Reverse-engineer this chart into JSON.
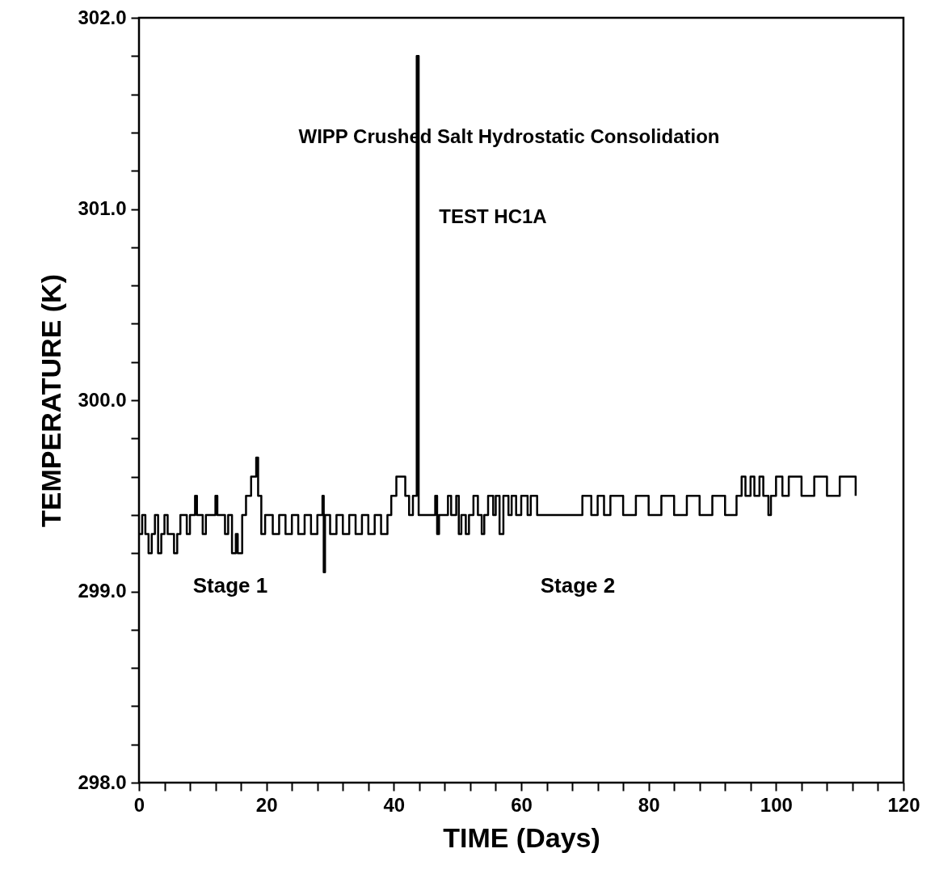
{
  "chart_data": {
    "type": "step",
    "title": "WIPP Crushed Salt Hydrostatic Consolidation",
    "subtitle": "TEST HC1A",
    "xlabel": "TIME (Days)",
    "ylabel": "TEMPERATURE (K)",
    "xlim": [
      0,
      120
    ],
    "ylim": [
      298.0,
      302.0
    ],
    "xticks": [
      0,
      {
        "value": 4,
        "label": null
      },
      {
        "value": 8,
        "label": null
      },
      {
        "value": 12,
        "label": null
      },
      {
        "value": 16,
        "label": null
      },
      20,
      {
        "value": 24,
        "label": null
      },
      {
        "value": 28,
        "label": null
      },
      {
        "value": 32,
        "label": null
      },
      {
        "value": 36,
        "label": null
      },
      40,
      {
        "value": 44,
        "label": null
      },
      {
        "value": 48,
        "label": null
      },
      {
        "value": 52,
        "label": null
      },
      {
        "value": 56,
        "label": null
      },
      60,
      {
        "value": 64,
        "label": null
      },
      {
        "value": 68,
        "label": null
      },
      {
        "value": 72,
        "label": null
      },
      {
        "value": 76,
        "label": null
      },
      80,
      {
        "value": 84,
        "label": null
      },
      {
        "value": 88,
        "label": null
      },
      {
        "value": 92,
        "label": null
      },
      {
        "value": 96,
        "label": null
      },
      100,
      {
        "value": 104,
        "label": null
      },
      {
        "value": 108,
        "label": null
      },
      {
        "value": 112,
        "label": null
      },
      {
        "value": 116,
        "label": null
      },
      120
    ],
    "yticks": [
      {
        "value": 298,
        "label": "298.0"
      },
      {
        "value": 298.2,
        "label": null
      },
      {
        "value": 298.4,
        "label": null
      },
      {
        "value": 298.6,
        "label": null
      },
      {
        "value": 298.8,
        "label": null
      },
      {
        "value": 299,
        "label": "299.0"
      },
      {
        "value": 299.2,
        "label": null
      },
      {
        "value": 299.4,
        "label": null
      },
      {
        "value": 299.6,
        "label": null
      },
      {
        "value": 299.8,
        "label": null
      },
      {
        "value": 300,
        "label": "300.0"
      },
      {
        "value": 300.2,
        "label": null
      },
      {
        "value": 300.4,
        "label": null
      },
      {
        "value": 300.6,
        "label": null
      },
      {
        "value": 300.8,
        "label": null
      },
      {
        "value": 301,
        "label": "301.0"
      },
      {
        "value": 301.2,
        "label": null
      },
      {
        "value": 301.4,
        "label": null
      },
      {
        "value": 301.6,
        "label": null
      },
      {
        "value": 301.8,
        "label": null
      },
      {
        "value": 302,
        "label": "302.0"
      }
    ],
    "grid": false,
    "marker": "none",
    "line_style": "solid",
    "annotations": [
      "Stage 1",
      "Stage 2"
    ],
    "series": [
      {
        "color": "#000000",
        "x": [
          0,
          0.5,
          1.0,
          1.5,
          2.0,
          2.5,
          3.0,
          3.5,
          4.0,
          4.5,
          5.5,
          6.0,
          6.5,
          7.5,
          8.0,
          8.8,
          9.1,
          10.0,
          10.5,
          12.0,
          12.3,
          13.5,
          14.0,
          14.6,
          15.2,
          15.5,
          16.2,
          16.8,
          17.6,
          18.4,
          18.7,
          19.2,
          19.8,
          21.0,
          22.0,
          23.0,
          24.0,
          25.0,
          26.0,
          27.0,
          28.0,
          28.8,
          29.0,
          29.2,
          30,
          31,
          32,
          33,
          34,
          35,
          36,
          37,
          38,
          39,
          39.6,
          40.4,
          41.8,
          42.4,
          43.0,
          43.6,
          43.9,
          46.5,
          46.8,
          47.1,
          48.5,
          49,
          49.8,
          50.2,
          50.6,
          51.3,
          51.8,
          52.5,
          53.2,
          53.8,
          54.2,
          54.8,
          55.6,
          56.0,
          56.6,
          57.2,
          58,
          58.5,
          59.2,
          60,
          61,
          61.5,
          62.5,
          69.6,
          71,
          72,
          73,
          74,
          76,
          78,
          80,
          82,
          84,
          86,
          88,
          90,
          92,
          93.8,
          94.6,
          95.2,
          96,
          96.6,
          97.4,
          98.0,
          98.8,
          99.2,
          100,
          101,
          102,
          104,
          106,
          108,
          110,
          112.5
        ],
        "values": [
          299.3,
          299.4,
          299.3,
          299.2,
          299.3,
          299.4,
          299.2,
          299.3,
          299.4,
          299.3,
          299.2,
          299.3,
          299.4,
          299.3,
          299.4,
          299.5,
          299.4,
          299.3,
          299.4,
          299.5,
          299.4,
          299.3,
          299.4,
          299.2,
          299.3,
          299.2,
          299.4,
          299.5,
          299.6,
          299.7,
          299.5,
          299.3,
          299.4,
          299.3,
          299.4,
          299.3,
          299.4,
          299.3,
          299.4,
          299.3,
          299.4,
          299.5,
          299.1,
          299.4,
          299.3,
          299.4,
          299.3,
          299.4,
          299.3,
          299.4,
          299.3,
          299.4,
          299.3,
          299.4,
          299.5,
          299.6,
          299.5,
          299.4,
          299.5,
          301.8,
          299.4,
          299.5,
          299.3,
          299.4,
          299.5,
          299.4,
          299.5,
          299.3,
          299.4,
          299.3,
          299.4,
          299.5,
          299.4,
          299.3,
          299.4,
          299.5,
          299.4,
          299.5,
          299.3,
          299.5,
          299.4,
          299.5,
          299.4,
          299.5,
          299.4,
          299.5,
          299.4,
          299.5,
          299.4,
          299.5,
          299.4,
          299.5,
          299.4,
          299.5,
          299.4,
          299.5,
          299.4,
          299.5,
          299.4,
          299.5,
          299.4,
          299.5,
          299.6,
          299.5,
          299.6,
          299.5,
          299.6,
          299.5,
          299.4,
          299.5,
          299.6,
          299.5,
          299.6,
          299.5,
          299.6,
          299.5,
          299.6,
          299.5
        ]
      }
    ]
  }
}
